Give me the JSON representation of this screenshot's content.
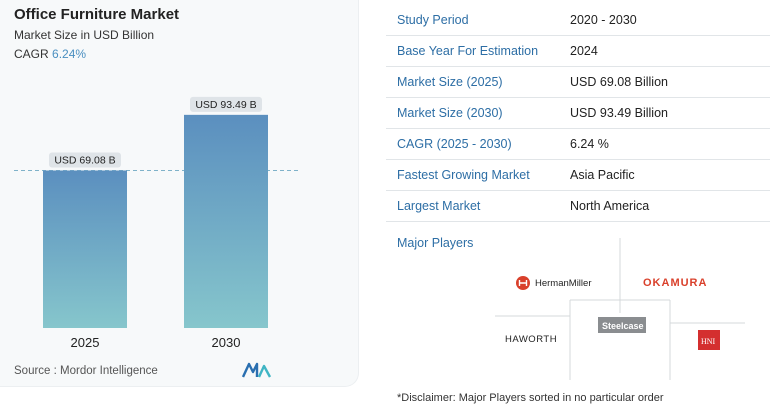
{
  "header": {
    "title": "Office Furniture Market",
    "subtitle": "Market Size in USD Billion",
    "cagr_label": "CAGR",
    "cagr_value": "6.24%"
  },
  "chart_data": {
    "type": "bar",
    "categories": [
      "2025",
      "2030"
    ],
    "values": [
      69.08,
      93.49
    ],
    "data_labels": [
      "USD 69.08 B",
      "USD 93.49 B"
    ],
    "title": "Office Furniture Market",
    "subtitle": "Market Size in USD Billion",
    "ylim": [
      0,
      100
    ],
    "grid": false,
    "reference_line": 69.08
  },
  "source": "Source :  Mordor Intelligence",
  "info_table": [
    {
      "key": "Study Period",
      "value": "2020 - 2030"
    },
    {
      "key": "Base Year For Estimation",
      "value": "2024"
    },
    {
      "key": "Market Size (2025)",
      "value": "USD 69.08 Billion"
    },
    {
      "key": "Market Size (2030)",
      "value": "USD 93.49 Billion"
    },
    {
      "key": "CAGR (2025 - 2030)",
      "value": "6.24 %"
    },
    {
      "key": "Fastest Growing Market",
      "value": "Asia Pacific"
    },
    {
      "key": "Largest Market",
      "value": "North America"
    }
  ],
  "major_players": {
    "label": "Major Players",
    "players": [
      "HermanMiller",
      "OKAMURA",
      "HAWORTH",
      "Steelcase",
      "HNI"
    ]
  },
  "disclaimer": "*Disclaimer: Major Players sorted in no particular order",
  "colors": {
    "bar_top": "#5b8fbf",
    "bar_bottom": "#86c6cc",
    "accent": "#2d6ea5",
    "herman_miller": "#d9402b",
    "okamura": "#d9402b",
    "hni": "#d42f2f"
  }
}
